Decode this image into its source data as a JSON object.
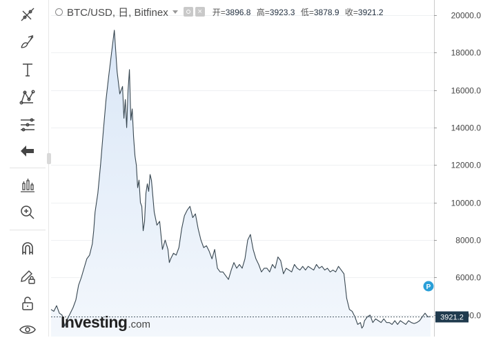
{
  "legend": {
    "symbol": "BTC/USD, 日, Bitfinex",
    "open_label": "开=",
    "open": "3896.8",
    "high_label": "高=",
    "high": "3923.3",
    "low_label": "低=",
    "low": "3878.9",
    "close_label": "收=",
    "close": "3921.2"
  },
  "toolbar": {
    "icons": [
      "cross-lines-icon",
      "brush-icon",
      "text-icon",
      "pattern-icon",
      "fib-icon",
      "back-arrow-icon",
      "indicator-icon",
      "zoom-in-icon",
      "magnet-icon",
      "pencil-lock-icon",
      "unlock-icon",
      "eye-icon"
    ]
  },
  "watermark": {
    "brand": "Investing",
    "domain": ".com"
  },
  "price_marker": "P",
  "colors": {
    "line": "#36454f",
    "fill_top": "#dfeaf8",
    "fill_bottom": "#f4f8fd",
    "accent": "#2a9fd8",
    "last_price_box": "#1f3a4d"
  },
  "chart_data": {
    "type": "area",
    "title": "",
    "xlabel": "",
    "ylabel": "",
    "ylim": [
      3000,
      20600
    ],
    "yticks": [
      4000,
      6000,
      8000,
      10000,
      12000,
      14000,
      16000,
      18000,
      20000
    ],
    "ytick_labels": [
      "4000.0",
      "6000.0",
      "8000.0",
      "10000.0",
      "12000.0",
      "14000.0",
      "16000.0",
      "18000.0",
      "20000.0"
    ],
    "last_value": 3921.2,
    "last_value_label": "3921.2",
    "grid": true,
    "x": [
      0,
      4,
      8,
      12,
      16,
      20,
      24,
      28,
      32,
      36,
      40,
      44,
      48,
      52,
      56,
      60,
      62,
      64,
      68,
      72,
      76,
      80,
      84,
      88,
      92,
      96,
      100,
      104,
      106,
      108,
      110,
      112,
      114,
      116,
      118,
      120,
      122,
      124,
      126,
      128,
      130,
      132,
      134,
      136,
      138,
      140,
      142,
      144,
      146,
      150,
      154,
      158,
      162,
      166,
      170,
      172,
      174,
      178,
      182,
      186,
      190,
      194,
      198,
      202,
      206,
      210,
      214,
      218,
      222,
      226,
      230,
      234,
      238,
      242,
      246,
      250,
      254,
      258,
      262,
      266,
      270,
      274,
      278,
      282,
      286,
      290,
      294,
      298,
      302,
      306,
      310,
      314,
      318,
      322,
      326,
      330,
      334,
      338,
      342,
      346,
      350,
      354,
      358,
      362,
      366,
      370,
      374,
      378,
      382,
      386,
      390,
      394,
      398,
      402,
      406,
      410,
      414,
      418,
      422,
      426,
      430,
      434,
      438,
      442,
      446,
      450,
      452,
      454,
      456,
      458,
      460,
      464,
      468,
      472,
      476,
      480,
      484,
      488,
      492,
      496,
      500,
      504,
      508,
      512,
      516,
      520,
      524,
      528,
      532,
      536,
      540,
      544,
      548,
      552
    ],
    "y": [
      4300,
      4200,
      4500,
      4100,
      4000,
      3400,
      3800,
      4100,
      4400,
      4800,
      5600,
      6000,
      6500,
      7000,
      7200,
      7800,
      8500,
      9500,
      10500,
      12000,
      13800,
      15500,
      16800,
      18000,
      19200,
      17000,
      15800,
      16200,
      14500,
      15500,
      14000,
      16000,
      17100,
      14400,
      15000,
      13500,
      12500,
      12000,
      10800,
      11200,
      10000,
      9800,
      8500,
      9000,
      10500,
      11000,
      10600,
      11500,
      11200,
      9500,
      8800,
      9000,
      7500,
      8000,
      7500,
      6800,
      7000,
      7300,
      7200,
      7600,
      8600,
      9300,
      9600,
      9800,
      9200,
      9400,
      8600,
      8000,
      7600,
      7700,
      7400,
      7000,
      7500,
      6500,
      6300,
      6300,
      6100,
      5900,
      6400,
      6800,
      6500,
      6700,
      6500,
      7000,
      8000,
      8300,
      7500,
      7000,
      6700,
      6300,
      6500,
      6500,
      6300,
      6700,
      6500,
      7100,
      6900,
      6200,
      6500,
      6400,
      6300,
      6700,
      6500,
      6400,
      6600,
      6400,
      6600,
      6500,
      6400,
      6700,
      6500,
      6600,
      6400,
      6500,
      6300,
      6400,
      6300,
      6600,
      6400,
      6200,
      4900,
      4300,
      4200,
      3900,
      3500,
      3600,
      3300,
      3400,
      3700,
      3800,
      3900,
      4000,
      3600,
      3800,
      3700,
      3600,
      3800,
      3600,
      3600,
      3500,
      3700,
      3500,
      3700,
      3600,
      3500,
      3700,
      3600,
      3550,
      3600,
      3700,
      3900,
      4100,
      3900,
      3921.2
    ]
  }
}
